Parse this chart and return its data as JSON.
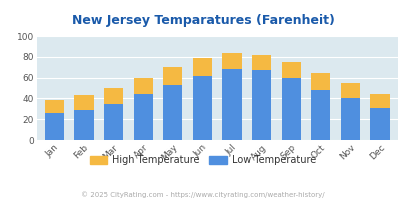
{
  "title": "New Jersey Temparatures (Farenheit)",
  "months": [
    "Jan",
    "Feb",
    "Mar",
    "Apr",
    "May",
    "Jun",
    "Jul",
    "Aug",
    "Sep",
    "Oct",
    "Nov",
    "Dec"
  ],
  "low_temps": [
    26,
    29,
    35,
    44,
    53,
    62,
    68,
    67,
    60,
    48,
    40,
    31
  ],
  "high_temps": [
    38,
    43,
    50,
    60,
    70,
    79,
    84,
    82,
    75,
    64,
    55,
    44
  ],
  "low_color": "#4f8fdf",
  "high_color": "#f5b942",
  "bg_color": "#dce9ef",
  "title_color": "#1a5aaa",
  "axis_label_color": "#555555",
  "legend_label_color": "#333333",
  "footer_color": "#aaaaaa",
  "footer_text": "© 2025 CityRating.com - https://www.cityrating.com/weather-history/",
  "ylim": [
    0,
    100
  ],
  "yticks": [
    0,
    20,
    40,
    60,
    80,
    100
  ]
}
